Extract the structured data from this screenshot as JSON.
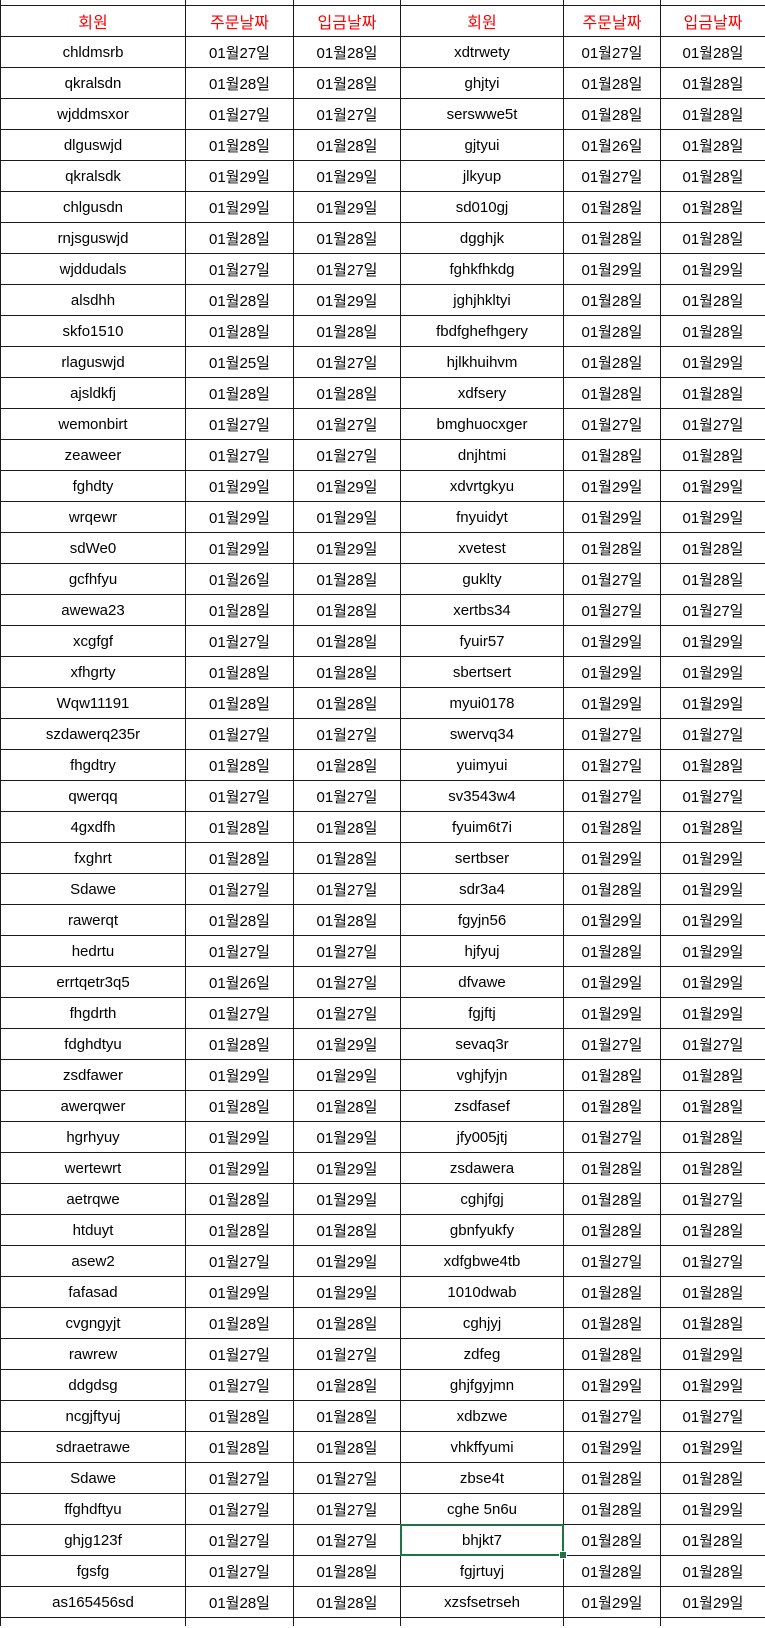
{
  "table": {
    "headers": [
      "회원",
      "주문날짜",
      "입금날짜",
      "회원",
      "주문날짜",
      "입금날짜"
    ],
    "rows": [
      [
        "chldmsrb",
        "01월27일",
        "01월28일",
        "xdtrwety",
        "01월27일",
        "01월28일"
      ],
      [
        "qkralsdn",
        "01월28일",
        "01월28일",
        "ghjtyi",
        "01월28일",
        "01월28일"
      ],
      [
        "wjddmsxor",
        "01월27일",
        "01월27일",
        "serswwe5t",
        "01월28일",
        "01월28일"
      ],
      [
        "dlguswjd",
        "01월28일",
        "01월28일",
        "gjtyui",
        "01월26일",
        "01월28일"
      ],
      [
        "qkralsdk",
        "01월29일",
        "01월29일",
        "jlkyup",
        "01월27일",
        "01월28일"
      ],
      [
        "chlgusdn",
        "01월29일",
        "01월29일",
        "sd010gj",
        "01월28일",
        "01월28일"
      ],
      [
        "rnjsguswjd",
        "01월28일",
        "01월28일",
        "dgghjk",
        "01월28일",
        "01월28일"
      ],
      [
        "wjddudals",
        "01월27일",
        "01월27일",
        "fghkfhkdg",
        "01월29일",
        "01월29일"
      ],
      [
        "alsdhh",
        "01월28일",
        "01월29일",
        "jghjhkltyi",
        "01월28일",
        "01월28일"
      ],
      [
        "skfo1510",
        "01월28일",
        "01월28일",
        "fbdfghefhgery",
        "01월28일",
        "01월28일"
      ],
      [
        "rlaguswjd",
        "01월25일",
        "01월27일",
        "hjlkhuihvm",
        "01월28일",
        "01월29일"
      ],
      [
        "ajsldkfj",
        "01월28일",
        "01월28일",
        "xdfsery",
        "01월28일",
        "01월28일"
      ],
      [
        "wemonbirt",
        "01월27일",
        "01월27일",
        "bmghuocxger",
        "01월27일",
        "01월27일"
      ],
      [
        "zeaweer",
        "01월27일",
        "01월27일",
        "dnjhtmi",
        "01월28일",
        "01월28일"
      ],
      [
        "fghdty",
        "01월29일",
        "01월29일",
        "xdvrtgkyu",
        "01월29일",
        "01월29일"
      ],
      [
        "wrqewr",
        "01월29일",
        "01월29일",
        "fnyuidyt",
        "01월29일",
        "01월29일"
      ],
      [
        "sdWe0",
        "01월29일",
        "01월29일",
        "xvetest",
        "01월28일",
        "01월28일"
      ],
      [
        "gcfhfyu",
        "01월26일",
        "01월28일",
        "guklty",
        "01월27일",
        "01월28일"
      ],
      [
        "awewa23",
        "01월28일",
        "01월28일",
        "xertbs34",
        "01월27일",
        "01월27일"
      ],
      [
        "xcgfgf",
        "01월27일",
        "01월28일",
        "fyuir57",
        "01월29일",
        "01월29일"
      ],
      [
        "xfhgrty",
        "01월28일",
        "01월28일",
        "sbertsert",
        "01월29일",
        "01월29일"
      ],
      [
        "Wqw11191",
        "01월28일",
        "01월28일",
        "myui0178",
        "01월29일",
        "01월29일"
      ],
      [
        "szdawerq235r",
        "01월27일",
        "01월27일",
        "swervq34",
        "01월27일",
        "01월27일"
      ],
      [
        "fhgdtry",
        "01월28일",
        "01월28일",
        "yuimyui",
        "01월27일",
        "01월28일"
      ],
      [
        "qwerqq",
        "01월27일",
        "01월27일",
        "sv3543w4",
        "01월27일",
        "01월27일"
      ],
      [
        "4gxdfh",
        "01월28일",
        "01월28일",
        "fyuim6t7i",
        "01월28일",
        "01월28일"
      ],
      [
        "fxghrt",
        "01월28일",
        "01월28일",
        "sertbser",
        "01월29일",
        "01월29일"
      ],
      [
        "Sdawe",
        "01월27일",
        "01월27일",
        "sdr3a4",
        "01월28일",
        "01월29일"
      ],
      [
        "rawerqt",
        "01월28일",
        "01월28일",
        "fgyjn56",
        "01월29일",
        "01월29일"
      ],
      [
        "hedrtu",
        "01월27일",
        "01월27일",
        "hjfyuj",
        "01월28일",
        "01월29일"
      ],
      [
        "errtqetr3q5",
        "01월26일",
        "01월27일",
        "dfvawe",
        "01월29일",
        "01월29일"
      ],
      [
        "fhgdrth",
        "01월27일",
        "01월27일",
        "fgjftj",
        "01월29일",
        "01월29일"
      ],
      [
        "fdghdtyu",
        "01월28일",
        "01월29일",
        "sevaq3r",
        "01월27일",
        "01월27일"
      ],
      [
        "zsdfawer",
        "01월29일",
        "01월29일",
        "vghjfyjn",
        "01월28일",
        "01월28일"
      ],
      [
        "awerqwer",
        "01월28일",
        "01월28일",
        "zsdfasef",
        "01월28일",
        "01월28일"
      ],
      [
        "hgrhyuy",
        "01월29일",
        "01월29일",
        "jfy005jtj",
        "01월27일",
        "01월28일"
      ],
      [
        "wertewrt",
        "01월29일",
        "01월29일",
        "zsdawera",
        "01월28일",
        "01월28일"
      ],
      [
        "aetrqwe",
        "01월28일",
        "01월29일",
        "cghjfgj",
        "01월28일",
        "01월27일"
      ],
      [
        "htduyt",
        "01월28일",
        "01월28일",
        "gbnfyukfy",
        "01월28일",
        "01월28일"
      ],
      [
        "asew2",
        "01월27일",
        "01월29일",
        "xdfgbwe4tb",
        "01월27일",
        "01월27일"
      ],
      [
        "fafasad",
        "01월29일",
        "01월29일",
        "1010dwab",
        "01월28일",
        "01월28일"
      ],
      [
        "cvgngyjt",
        "01월28일",
        "01월28일",
        "cghjyj",
        "01월28일",
        "01월28일"
      ],
      [
        "rawrew",
        "01월27일",
        "01월27일",
        "zdfeg",
        "01월28일",
        "01월29일"
      ],
      [
        "ddgdsg",
        "01월27일",
        "01월28일",
        "ghjfgyjmn",
        "01월29일",
        "01월29일"
      ],
      [
        "ncgjftyuj",
        "01월28일",
        "01월28일",
        "xdbzwe",
        "01월27일",
        "01월27일"
      ],
      [
        "sdraetrawe",
        "01월28일",
        "01월28일",
        "vhkffyumi",
        "01월29일",
        "01월29일"
      ],
      [
        "Sdawe",
        "01월27일",
        "01월27일",
        "zbse4t",
        "01월28일",
        "01월28일"
      ],
      [
        "ffghdftyu",
        "01월27일",
        "01월27일",
        "cghe 5n6u",
        "01월28일",
        "01월29일"
      ],
      [
        "ghjg123f",
        "01월27일",
        "01월27일",
        "bhjkt7",
        "01월28일",
        "01월28일"
      ],
      [
        "fgsfg",
        "01월27일",
        "01월28일",
        "fgjrtuyj",
        "01월28일",
        "01월28일"
      ],
      [
        "as165456sd",
        "01월28일",
        "01월28일",
        "xzsfsetrseh",
        "01월29일",
        "01월29일"
      ]
    ],
    "selection": {
      "row": 48,
      "col": 3
    }
  },
  "colors": {
    "header_text": "#FF0000",
    "grid_line": "#1A1A1A",
    "selection_border": "#217346",
    "cell_text": "#000000",
    "background": "#FFFFFF"
  }
}
